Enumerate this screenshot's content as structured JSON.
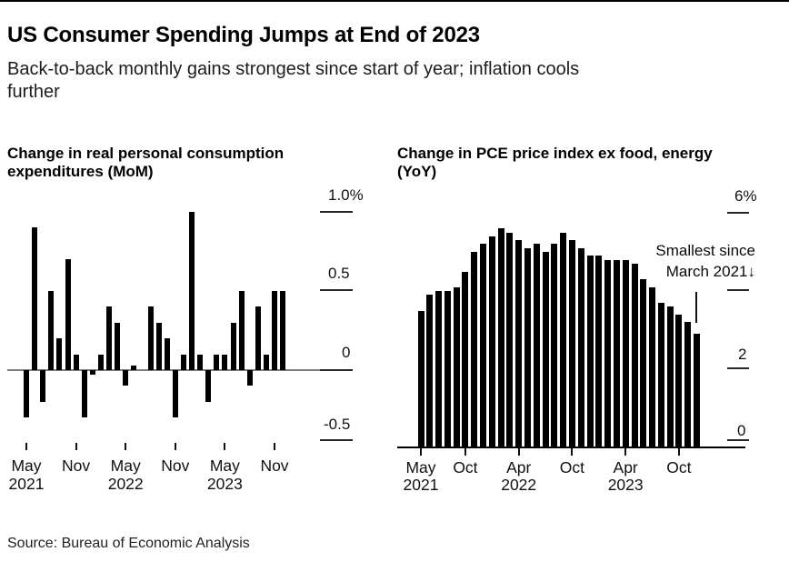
{
  "header": {
    "title": "US Consumer Spending Jumps at End of 2023",
    "subtitle": "Back-to-back monthly gains strongest since start of year; inflation cools further",
    "subtitle_lines": [
      "Back-to-back monthly gains strongest since start of year; inflation cools",
      "further"
    ]
  },
  "source": {
    "text": "Source: Bureau of Economic Analysis"
  },
  "chart_data": [
    {
      "type": "bar",
      "title": "Change in real personal consumption expenditures (MoM)",
      "title_lines": [
        "Change in real personal consumption",
        "expenditures (MoM)"
      ],
      "unit": "%",
      "ylim": [
        -0.5,
        1.0
      ],
      "grid": "none",
      "bar_color": "#000000",
      "zero_line_color": "#7d7d7d",
      "categories": [
        "May 2021",
        "Jun 2021",
        "Jul 2021",
        "Aug 2021",
        "Sep 2021",
        "Oct 2021",
        "Nov 2021",
        "Dec 2021",
        "Jan 2022",
        "Feb 2022",
        "Mar 2022",
        "Apr 2022",
        "May 2022",
        "Jun 2022",
        "Jul 2022",
        "Aug 2022",
        "Sep 2022",
        "Oct 2022",
        "Nov 2022",
        "Dec 2022",
        "Jan 2023",
        "Feb 2023",
        "Mar 2023",
        "Apr 2023",
        "May 2023",
        "Jun 2023",
        "Jul 2023",
        "Aug 2023",
        "Sep 2023",
        "Oct 2023",
        "Nov 2023",
        "Dec 2023"
      ],
      "values": [
        -0.3,
        0.9,
        -0.2,
        0.5,
        0.2,
        0.7,
        0.1,
        -0.3,
        -0.03,
        0.1,
        0.4,
        0.3,
        -0.1,
        0.03,
        0,
        0.4,
        0.3,
        0.2,
        -0.3,
        0.1,
        1.0,
        0.1,
        -0.2,
        0.1,
        0.1,
        0.3,
        0.5,
        -0.1,
        0.4,
        0.1,
        0.5,
        0.5
      ],
      "y_axis": {
        "tick_labels": [
          "1.0%",
          "0.5",
          "0",
          "-0.5"
        ],
        "tick_values": [
          1.0,
          0.5,
          0,
          -0.5
        ]
      },
      "x_axis": {
        "tick_labels": [
          [
            "May",
            "2021"
          ],
          [
            "Nov",
            ""
          ],
          [
            "May",
            "2022"
          ],
          [
            "Nov",
            ""
          ],
          [
            "May",
            "2023"
          ],
          [
            "Nov",
            ""
          ]
        ],
        "tick_month_indices": [
          0,
          6,
          12,
          18,
          24,
          30
        ]
      }
    },
    {
      "type": "bar",
      "title": "Change in PCE price index ex food, energy (YoY)",
      "title_lines": [
        "Change in PCE price index ex food, energy",
        "(YoY)"
      ],
      "unit": "%",
      "ylim": [
        0,
        6
      ],
      "grid": "none",
      "bar_color": "#000000",
      "axis_line_color": "#000000",
      "categories": [
        "May 2021",
        "Jun 2021",
        "Jul 2021",
        "Aug 2021",
        "Sep 2021",
        "Oct 2021",
        "Nov 2021",
        "Dec 2021",
        "Jan 2022",
        "Feb 2022",
        "Mar 2022",
        "Apr 2022",
        "May 2022",
        "Jun 2022",
        "Jul 2022",
        "Aug 2022",
        "Sep 2022",
        "Oct 2022",
        "Nov 2022",
        "Dec 2022",
        "Jan 2023",
        "Feb 2023",
        "Mar 2023",
        "Apr 2023",
        "May 2023",
        "Jun 2023",
        "Jul 2023",
        "Aug 2023",
        "Sep 2023",
        "Oct 2023",
        "Nov 2023",
        "Dec 2023"
      ],
      "values": [
        3.5,
        3.9,
        4.0,
        4.0,
        4.1,
        4.5,
        5.0,
        5.2,
        5.4,
        5.6,
        5.5,
        5.3,
        5.1,
        5.2,
        5.0,
        5.2,
        5.5,
        5.3,
        5.1,
        4.9,
        4.9,
        4.8,
        4.8,
        4.8,
        4.7,
        4.3,
        4.1,
        3.7,
        3.6,
        3.4,
        3.2,
        2.9
      ],
      "y_axis": {
        "tick_labels": [
          "6%",
          "",
          "2",
          "0"
        ],
        "tick_values": [
          6,
          4,
          2,
          0
        ]
      },
      "x_axis": {
        "tick_labels": [
          [
            "May",
            "2021"
          ],
          [
            "Oct",
            ""
          ],
          [
            "Apr",
            "2022"
          ],
          [
            "Oct",
            ""
          ],
          [
            "Apr",
            "2023"
          ],
          [
            "Oct",
            ""
          ]
        ],
        "tick_month_indices": [
          0,
          5,
          11,
          17,
          23,
          29
        ]
      },
      "annotation": {
        "line1": "Smallest since",
        "line2": "March 2021",
        "arrow": "↓",
        "points_to": "Dec 2023"
      }
    }
  ]
}
